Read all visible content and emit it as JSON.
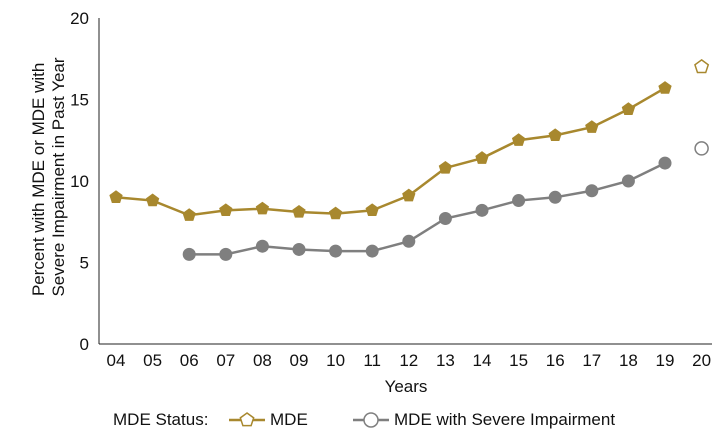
{
  "chart_data": {
    "type": "line",
    "xlabel": "Years",
    "ylabel_lines": [
      "Percent with MDE or MDE with",
      "Severe Impairment in Past Year"
    ],
    "ylim": [
      0,
      20
    ],
    "yticks": [
      "0",
      "5",
      "10",
      "15",
      "20"
    ],
    "categories": [
      "04",
      "05",
      "06",
      "07",
      "08",
      "09",
      "10",
      "11",
      "12",
      "13",
      "14",
      "15",
      "16",
      "17",
      "18",
      "19",
      "20"
    ],
    "legend_title": "MDE Status:",
    "legend_placement": "bottom",
    "grid": false,
    "series": [
      {
        "name": "MDE",
        "color": "#A8882E",
        "marker": "pentagon",
        "values": [
          9.0,
          8.8,
          7.9,
          8.2,
          8.3,
          8.1,
          8.0,
          8.2,
          9.1,
          10.8,
          11.4,
          12.5,
          12.8,
          13.3,
          14.4,
          15.7,
          17.0
        ],
        "open_last_point": true
      },
      {
        "name": "MDE with Severe Impairment",
        "color": "#7F7F7F",
        "marker": "circle",
        "values": [
          null,
          null,
          5.5,
          5.5,
          6.0,
          5.8,
          5.7,
          5.7,
          6.3,
          7.7,
          8.2,
          8.8,
          9.0,
          9.4,
          10.0,
          11.1,
          12.0
        ],
        "open_last_point": true
      }
    ]
  }
}
